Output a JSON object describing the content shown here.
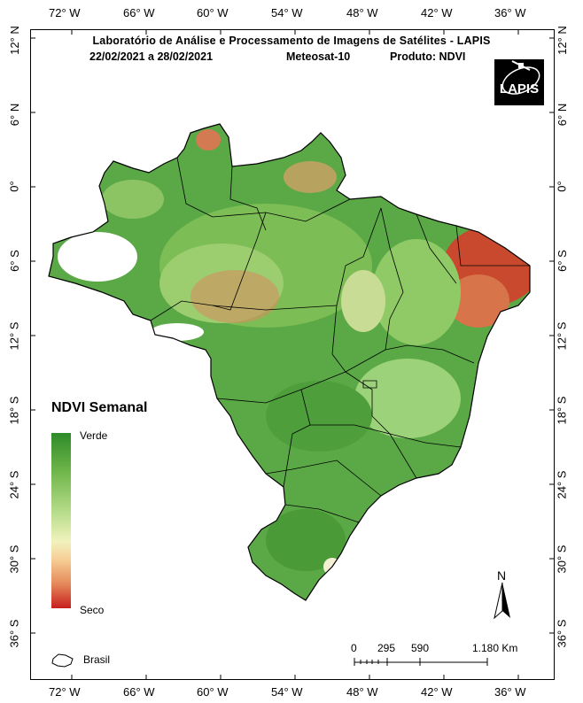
{
  "header": {
    "title": "Laboratório de Análise e Processamento de Imagens de Satélites - LAPIS",
    "date_range": "22/02/2021  a  28/02/2021",
    "satellite": "Meteosat-10",
    "product": "Produto: NDVI"
  },
  "logo_text": "LAPIS",
  "longitude_labels": [
    "72° W",
    "66° W",
    "60° W",
    "54° W",
    "48° W",
    "42° W",
    "36° W"
  ],
  "latitude_labels": [
    "12° N",
    "6° N",
    "0°",
    "6° S",
    "12° S",
    "18° S",
    "24° S",
    "30° S",
    "36° S"
  ],
  "legend": {
    "title": "NDVI Semanal",
    "top_label": "Verde",
    "bottom_label": "Seco",
    "colors": [
      "#2e8b2a",
      "#6fb64a",
      "#b6dc8a",
      "#f1f2bd",
      "#f6cf96",
      "#e58a5a",
      "#c81e1e"
    ]
  },
  "boundary_legend": "Brasil",
  "north_arrow_label": "N",
  "scale_bar": {
    "labels": [
      "0",
      "295",
      "590",
      "1.180 Km"
    ]
  }
}
